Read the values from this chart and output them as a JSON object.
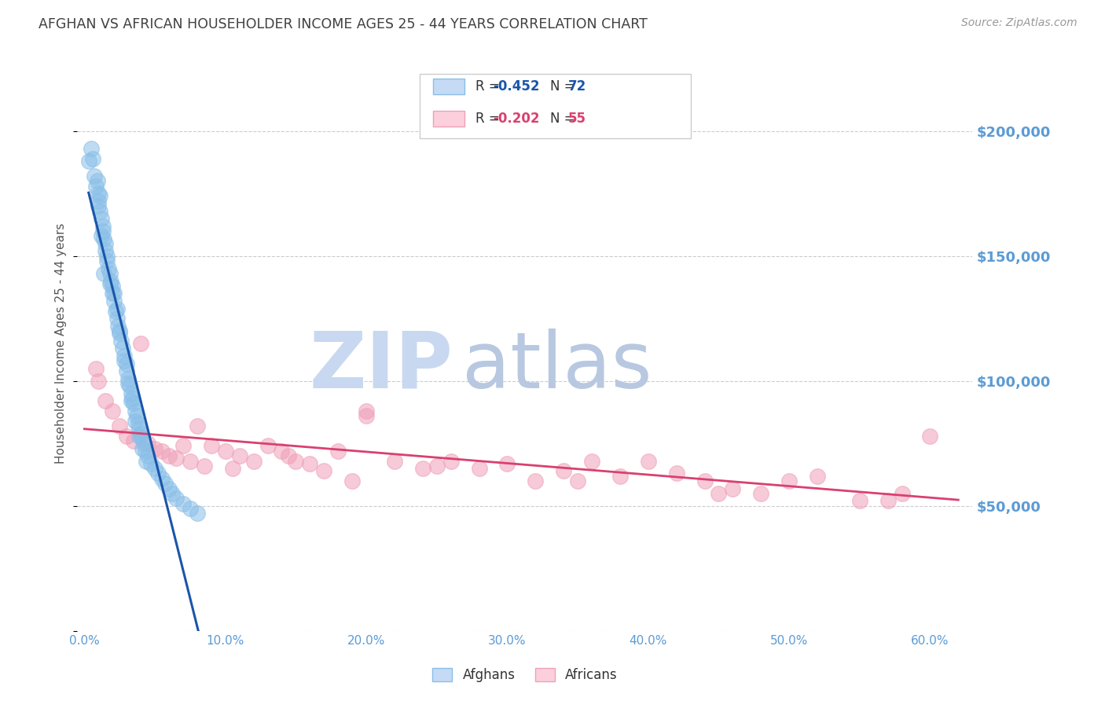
{
  "title": "AFGHAN VS AFRICAN HOUSEHOLDER INCOME AGES 25 - 44 YEARS CORRELATION CHART",
  "source": "Source: ZipAtlas.com",
  "ylabel": "Householder Income Ages 25 - 44 years",
  "ytick_vals": [
    0,
    50000,
    100000,
    150000,
    200000
  ],
  "ytick_labels": [
    "",
    "$50,000",
    "$100,000",
    "$150,000",
    "$200,000"
  ],
  "xlabel_vals": [
    0,
    10,
    20,
    30,
    40,
    50,
    60
  ],
  "ymin": 0,
  "ymax": 230000,
  "xmin": -0.5,
  "xmax": 63,
  "legend_blue_r": "R = -0.452",
  "legend_blue_n": "N = 72",
  "legend_pink_r": "R = -0.202",
  "legend_pink_n": "N = 55",
  "legend_label_blue": "Afghans",
  "legend_label_pink": "Africans",
  "blue_color": "#89bfe8",
  "pink_color": "#f0a0b8",
  "blue_line_color": "#1a55aa",
  "pink_line_color": "#d94070",
  "title_color": "#404040",
  "axis_label_color": "#5b9bd5",
  "watermark_zip_color": "#c8d8f0",
  "watermark_atlas_color": "#b8c8e0",
  "blue_x": [
    0.3,
    0.5,
    0.6,
    0.7,
    0.8,
    0.9,
    1.0,
    1.0,
    1.1,
    1.1,
    1.2,
    1.3,
    1.4,
    1.5,
    1.5,
    1.6,
    1.7,
    1.8,
    1.9,
    2.0,
    2.0,
    2.1,
    2.2,
    2.3,
    2.4,
    2.5,
    2.6,
    2.7,
    2.8,
    3.0,
    3.0,
    3.1,
    3.2,
    3.3,
    3.4,
    3.5,
    3.6,
    3.7,
    3.8,
    3.9,
    4.0,
    4.1,
    4.2,
    4.3,
    4.5,
    4.7,
    5.0,
    5.2,
    5.5,
    5.7,
    6.0,
    6.2,
    6.5,
    7.0,
    7.5,
    8.0,
    1.3,
    1.6,
    2.1,
    2.3,
    2.5,
    2.8,
    3.1,
    3.3,
    3.6,
    3.9,
    4.1,
    4.4,
    1.0,
    1.2,
    1.4,
    1.8
  ],
  "blue_y": [
    188000,
    193000,
    189000,
    182000,
    178000,
    180000,
    175000,
    170000,
    174000,
    168000,
    165000,
    160000,
    157000,
    155000,
    152000,
    148000,
    145000,
    143000,
    140000,
    138000,
    135000,
    132000,
    128000,
    125000,
    122000,
    119000,
    116000,
    113000,
    110000,
    107000,
    104000,
    101000,
    98000,
    95000,
    93000,
    91000,
    88000,
    86000,
    83000,
    81000,
    79000,
    77000,
    75000,
    72000,
    70000,
    67000,
    65000,
    63000,
    61000,
    59000,
    57000,
    55000,
    53000,
    51000,
    49000,
    47000,
    162000,
    150000,
    135000,
    129000,
    120000,
    108000,
    99000,
    92000,
    84000,
    78000,
    73000,
    68000,
    172000,
    158000,
    143000,
    139000
  ],
  "pink_x": [
    0.8,
    1.0,
    1.5,
    2.0,
    2.5,
    3.0,
    3.5,
    4.0,
    4.5,
    5.0,
    5.5,
    6.0,
    6.5,
    7.0,
    7.5,
    8.0,
    9.0,
    10.0,
    11.0,
    12.0,
    13.0,
    14.0,
    15.0,
    16.0,
    17.0,
    18.0,
    19.0,
    20.0,
    22.0,
    24.0,
    26.0,
    28.0,
    30.0,
    32.0,
    34.0,
    36.0,
    38.0,
    40.0,
    42.0,
    44.0,
    46.0,
    48.0,
    50.0,
    52.0,
    55.0,
    58.0,
    60.0,
    8.5,
    10.5,
    14.5,
    20.0,
    25.0,
    35.0,
    45.0,
    57.0
  ],
  "pink_y": [
    105000,
    100000,
    92000,
    88000,
    82000,
    78000,
    76000,
    115000,
    75000,
    73000,
    72000,
    70000,
    69000,
    74000,
    68000,
    82000,
    74000,
    72000,
    70000,
    68000,
    74000,
    72000,
    68000,
    67000,
    64000,
    72000,
    60000,
    88000,
    68000,
    65000,
    68000,
    65000,
    67000,
    60000,
    64000,
    68000,
    62000,
    68000,
    63000,
    60000,
    57000,
    55000,
    60000,
    62000,
    52000,
    55000,
    78000,
    66000,
    65000,
    70000,
    86000,
    66000,
    60000,
    55000,
    52000
  ]
}
